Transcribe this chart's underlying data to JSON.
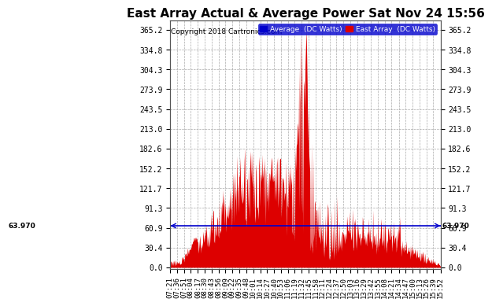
{
  "title": "East Array Actual & Average Power Sat Nov 24 15:56",
  "copyright": "Copyright 2018 Cartronics.com",
  "average_value": 63.97,
  "average_label": "63.970",
  "y_ticks": [
    0.0,
    30.4,
    60.9,
    91.3,
    121.7,
    152.2,
    182.6,
    213.0,
    243.5,
    273.9,
    304.3,
    334.8,
    365.2
  ],
  "x_labels": [
    "07:21",
    "07:36",
    "07:51",
    "08:04",
    "08:17",
    "08:30",
    "08:43",
    "08:56",
    "09:09",
    "09:22",
    "09:35",
    "09:48",
    "10:01",
    "10:14",
    "10:27",
    "10:40",
    "10:53",
    "11:06",
    "11:19",
    "11:32",
    "11:45",
    "11:58",
    "12:11",
    "12:24",
    "12:37",
    "12:50",
    "13:03",
    "13:16",
    "13:29",
    "13:42",
    "13:55",
    "14:08",
    "14:21",
    "14:34",
    "14:47",
    "15:00",
    "15:13",
    "15:26",
    "15:39",
    "15:52"
  ],
  "legend_avg_label": "Average  (DC Watts)",
  "legend_east_label": "East Array  (DC Watts)",
  "bg_color": "#ffffff",
  "plot_bg_color": "#ffffff",
  "grid_color": "#aaaaaa",
  "fill_color": "#dd0000",
  "avg_line_color": "#0000cc",
  "title_fontsize": 11,
  "tick_fontsize": 7,
  "ylim_min": -3,
  "ylim_max": 380
}
